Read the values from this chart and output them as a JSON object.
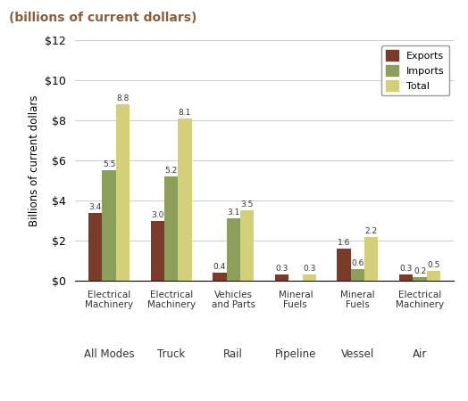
{
  "title_top": "(billions of current dollars)",
  "ylabel": "Billions of current dollars",
  "ylim": [
    0,
    12
  ],
  "yticks": [
    0,
    2,
    4,
    6,
    8,
    10,
    12
  ],
  "ytick_labels": [
    "$0",
    "$2",
    "$4",
    "$6",
    "$8",
    "$10",
    "$12"
  ],
  "groups": [
    {
      "mode": "All Modes",
      "commodity": "Electrical\nMachinery",
      "exports": 3.4,
      "imports": 5.5,
      "total": 8.8
    },
    {
      "mode": "Truck",
      "commodity": "Electrical\nMachinery",
      "exports": 3.0,
      "imports": 5.2,
      "total": 8.1
    },
    {
      "mode": "Rail",
      "commodity": "Vehicles\nand Parts",
      "exports": 0.4,
      "imports": 3.1,
      "total": 3.5
    },
    {
      "mode": "Pipeline",
      "commodity": "Mineral\nFuels",
      "exports": 0.3,
      "imports": 0.0,
      "total": 0.3
    },
    {
      "mode": "Vessel",
      "commodity": "Mineral\nFuels",
      "exports": 1.6,
      "imports": 0.6,
      "total": 2.2
    },
    {
      "mode": "Air",
      "commodity": "Electrical\nMachinery",
      "exports": 0.3,
      "imports": 0.2,
      "total": 0.5
    }
  ],
  "bar_width": 0.22,
  "colors": {
    "exports": "#7B3B2A",
    "imports": "#8B9E5A",
    "total": "#D4D07A"
  },
  "legend_labels": [
    "Exports",
    "Imports",
    "Total"
  ],
  "background_color": "#ffffff",
  "grid_color": "#cccccc",
  "title_color": "#8B5E3C"
}
